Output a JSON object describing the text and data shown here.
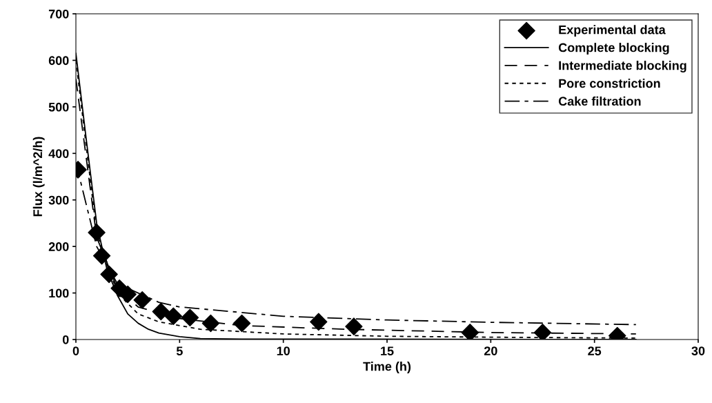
{
  "chart_data": {
    "type": "line",
    "xlabel": "Time (h)",
    "ylabel": "Flux (l/m^2/h)",
    "xlim": [
      0,
      30
    ],
    "xticks": [
      0,
      5,
      10,
      15,
      20,
      25,
      30
    ],
    "ylim": [
      0,
      700
    ],
    "yticks": [
      0,
      100,
      200,
      300,
      400,
      500,
      600,
      700
    ],
    "grid": false,
    "legend": "top right",
    "series": [
      {
        "name": "Experimental data",
        "type": "scatter",
        "marker": "diamond",
        "color": "#000000",
        "x": [
          0.1,
          1.0,
          1.25,
          1.6,
          2.1,
          2.5,
          3.2,
          4.1,
          4.7,
          5.5,
          6.5,
          8.0,
          11.7,
          13.4,
          19.0,
          22.5,
          26.1
        ],
        "values": [
          365,
          230,
          180,
          140,
          110,
          97,
          85,
          60,
          50,
          47,
          35,
          35,
          38,
          28,
          15,
          15,
          8
        ]
      },
      {
        "name": "Complete blocking",
        "line_style": "solid",
        "color": "#000000",
        "x": [
          0,
          0.5,
          1,
          1.5,
          2,
          2.5,
          3,
          3.5,
          4,
          5,
          6,
          8,
          27
        ],
        "values": [
          615,
          430,
          250,
          150,
          95,
          55,
          35,
          22,
          14,
          6,
          2,
          1,
          0
        ]
      },
      {
        "name": "Intermediate blocking",
        "line_style": "longdash",
        "color": "#000000",
        "x": [
          0,
          1,
          2,
          3,
          5,
          8,
          13,
          20,
          27
        ],
        "values": [
          560,
          220,
          110,
          70,
          45,
          30,
          22,
          15,
          12
        ]
      },
      {
        "name": "Pore constriction",
        "line_style": "dashed",
        "color": "#000000",
        "x": [
          0,
          1,
          2,
          3,
          4,
          6,
          10,
          15,
          20,
          27
        ],
        "values": [
          600,
          230,
          100,
          55,
          38,
          22,
          12,
          7,
          5,
          3
        ]
      },
      {
        "name": "Cake filtration",
        "line_style": "dashdot",
        "color": "#000000",
        "x": [
          0,
          1,
          2,
          4,
          5,
          10,
          15,
          20,
          27
        ],
        "values": [
          380,
          200,
          120,
          80,
          70,
          50,
          42,
          37,
          32
        ]
      }
    ]
  }
}
